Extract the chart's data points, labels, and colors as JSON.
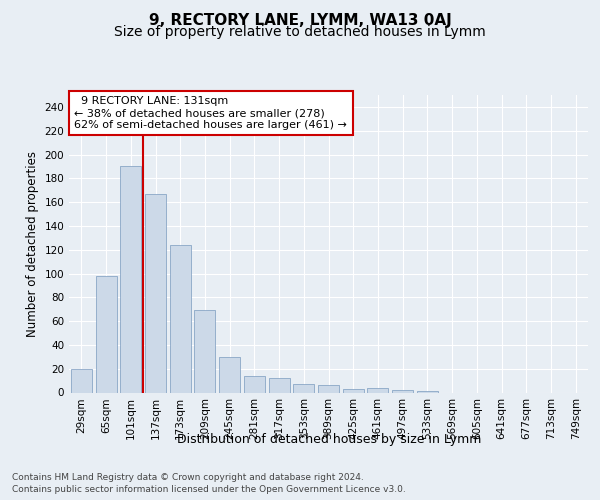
{
  "title": "9, RECTORY LANE, LYMM, WA13 0AJ",
  "subtitle": "Size of property relative to detached houses in Lymm",
  "xlabel": "Distribution of detached houses by size in Lymm",
  "ylabel": "Number of detached properties",
  "footer_line1": "Contains HM Land Registry data © Crown copyright and database right 2024.",
  "footer_line2": "Contains public sector information licensed under the Open Government Licence v3.0.",
  "annotation_line1": "  9 RECTORY LANE: 131sqm",
  "annotation_line2": "← 38% of detached houses are smaller (278)",
  "annotation_line3": "62% of semi-detached houses are larger (461) →",
  "bar_categories": [
    "29sqm",
    "65sqm",
    "101sqm",
    "137sqm",
    "173sqm",
    "209sqm",
    "245sqm",
    "281sqm",
    "317sqm",
    "353sqm",
    "389sqm",
    "425sqm",
    "461sqm",
    "497sqm",
    "533sqm",
    "569sqm",
    "605sqm",
    "641sqm",
    "677sqm",
    "713sqm",
    "749sqm"
  ],
  "bar_values": [
    20,
    98,
    190,
    167,
    124,
    69,
    30,
    14,
    12,
    7,
    6,
    3,
    4,
    2,
    1,
    0,
    0,
    0,
    0,
    0,
    0
  ],
  "bar_color": "#ccd9e8",
  "bar_edge_color": "#7a9abf",
  "vline_color": "#cc0000",
  "vline_x": 2.5,
  "ylim": [
    0,
    250
  ],
  "yticks": [
    0,
    20,
    40,
    60,
    80,
    100,
    120,
    140,
    160,
    180,
    200,
    220,
    240
  ],
  "bg_color": "#e8eef4",
  "annotation_box_color": "#ffffff",
  "annotation_box_edge": "#cc0000",
  "title_fontsize": 11,
  "subtitle_fontsize": 10,
  "ylabel_fontsize": 8.5,
  "xlabel_fontsize": 9,
  "tick_fontsize": 7.5,
  "annotation_fontsize": 8,
  "footer_fontsize": 6.5
}
